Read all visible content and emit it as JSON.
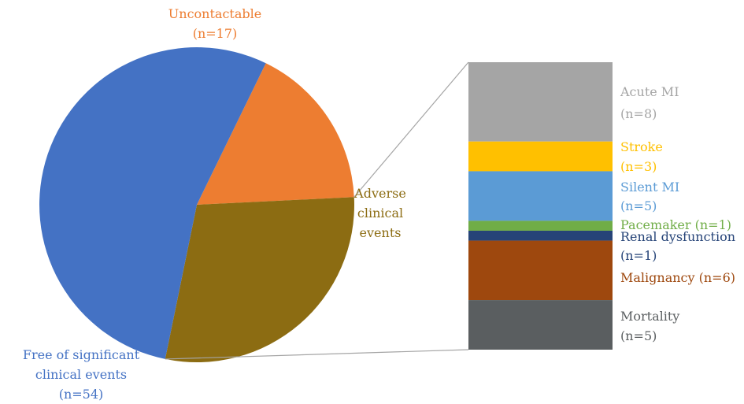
{
  "chart_data": {
    "type": "bar-of-pie",
    "title": "",
    "pie": {
      "slices": [
        {
          "label_lines": [
            "Uncontactable",
            "(n=17)"
          ],
          "value": 17,
          "color": "#ED7D31"
        },
        {
          "label_lines": [
            "Adverse",
            "clinical",
            "events"
          ],
          "value": 29,
          "color": "#8C6C12"
        },
        {
          "label_lines": [
            "Free of significant",
            "clinical events",
            "(n=54)"
          ],
          "value": 54,
          "color": "#4472C4"
        }
      ]
    },
    "bar": {
      "parent": "Adverse clinical events",
      "segments": [
        {
          "label_lines": [
            "Acute MI",
            "(n=8)"
          ],
          "value": 8,
          "color": "#A5A5A5",
          "text_color": "#A5A5A5"
        },
        {
          "label_lines": [
            "Stroke",
            "(n=3)"
          ],
          "value": 3,
          "color": "#FFC000",
          "text_color": "#FFC000"
        },
        {
          "label_lines": [
            "Silent MI",
            "(n=5)"
          ],
          "value": 5,
          "color": "#5B9BD5",
          "text_color": "#5B9BD5"
        },
        {
          "label_lines": [
            "Pacemaker (n=1)"
          ],
          "value": 1,
          "color": "#70AD47",
          "text_color": "#70AD47"
        },
        {
          "label_lines": [
            "Renal dysfunction",
            "(n=1)"
          ],
          "value": 1,
          "color": "#264478",
          "text_color": "#264478"
        },
        {
          "label_lines": [
            "Malignancy (n=6)"
          ],
          "value": 6,
          "color": "#9E480E",
          "text_color": "#9E480E"
        },
        {
          "label_lines": [
            "Mortality",
            "(n=5)"
          ],
          "value": 5,
          "color": "#5A5E60",
          "text_color": "#5A5E60"
        }
      ]
    }
  }
}
